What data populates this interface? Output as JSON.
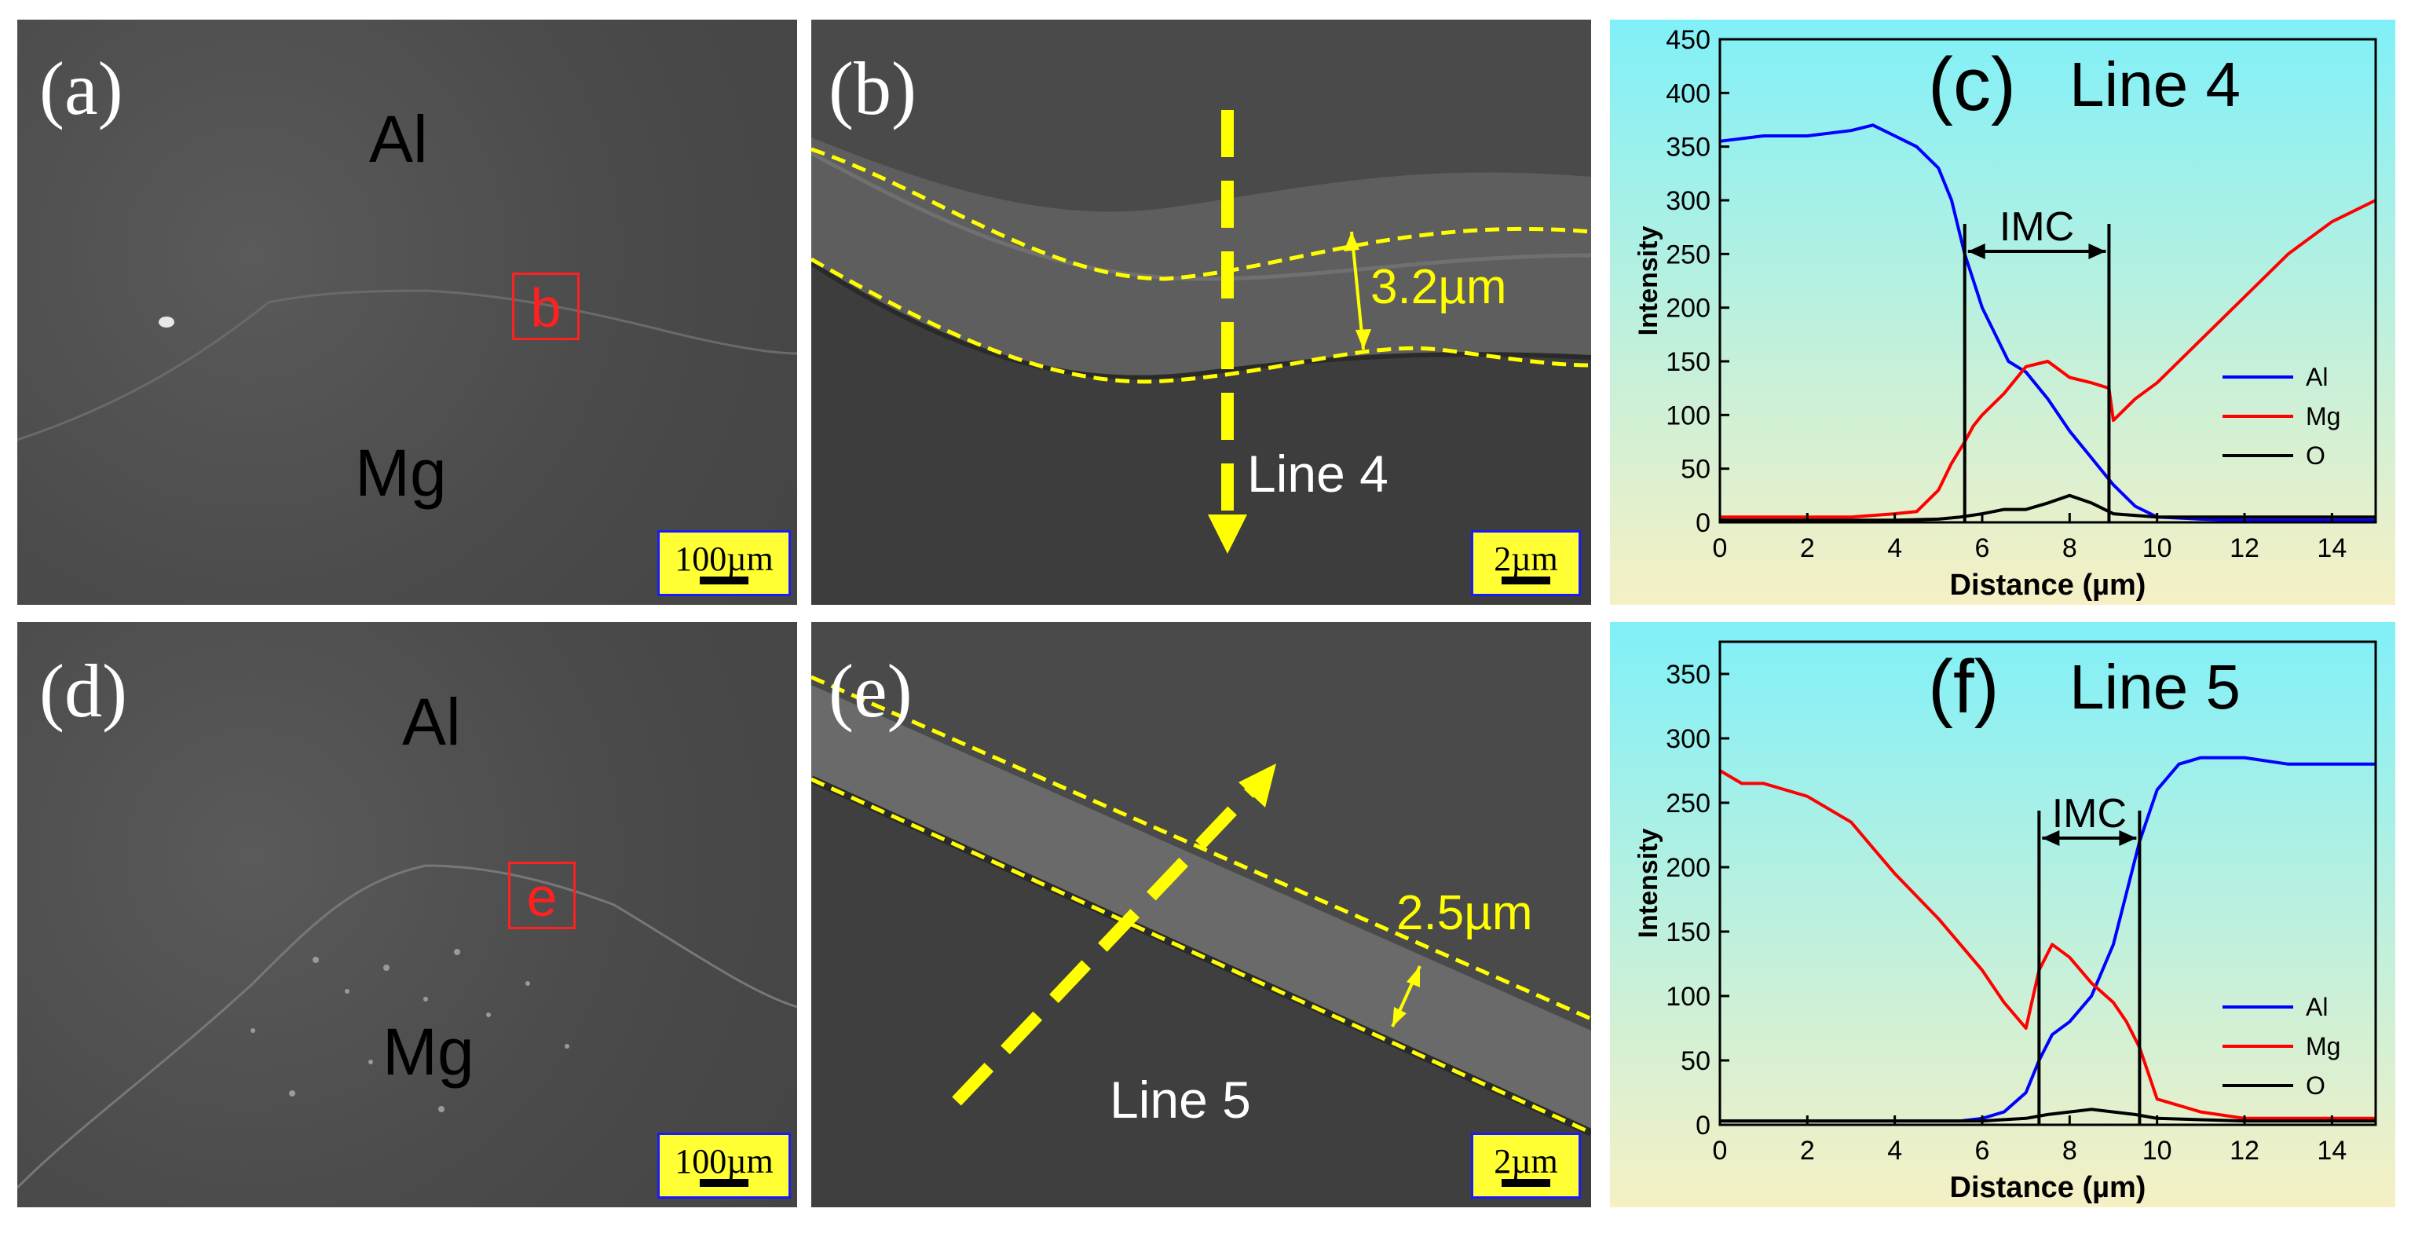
{
  "panels": {
    "a": {
      "label": "(a)",
      "top_text": "Al",
      "bottom_text": "Mg",
      "box_label": "b",
      "scale": "100µm"
    },
    "b": {
      "label": "(b)",
      "thickness": "3.2µm",
      "line": "Line 4",
      "scale": "2µm"
    },
    "d": {
      "label": "(d)",
      "top_text": "Al",
      "bottom_text": "Mg",
      "box_label": "e",
      "scale": "100µm"
    },
    "e": {
      "label": "(e)",
      "thickness": "2.5µm",
      "line": "Line 5",
      "scale": "2µm"
    }
  },
  "chart_data": [
    {
      "type": "line",
      "panel_label": "(c)",
      "title": "Line 4",
      "xlabel": "Distance (µm)",
      "ylabel": "Intensity",
      "xlim": [
        0,
        15
      ],
      "ylim": [
        0,
        450
      ],
      "xticks": [
        0,
        2,
        4,
        6,
        8,
        10,
        12,
        14
      ],
      "yticks": [
        0,
        50,
        100,
        150,
        200,
        250,
        300,
        350,
        400,
        450
      ],
      "annotation": {
        "text": "IMC",
        "x_range": [
          5.6,
          8.9
        ]
      },
      "legend": "right-middle",
      "background": [
        "#80f0f8",
        "#f6f0c4"
      ],
      "series": [
        {
          "name": "Al",
          "color": "#0000ff",
          "x": [
            0,
            1,
            2,
            3,
            3.5,
            4,
            4.5,
            5,
            5.3,
            5.6,
            5.8,
            6,
            6.3,
            6.6,
            7,
            7.5,
            8,
            8.5,
            9,
            9.5,
            10,
            11,
            12,
            13,
            14,
            15
          ],
          "y": [
            355,
            360,
            360,
            365,
            370,
            360,
            350,
            330,
            300,
            250,
            225,
            200,
            175,
            150,
            140,
            115,
            85,
            60,
            35,
            15,
            5,
            3,
            2,
            2,
            2,
            2
          ]
        },
        {
          "name": "Mg",
          "color": "#ff0000",
          "x": [
            0,
            1,
            2,
            3,
            4,
            4.5,
            5,
            5.3,
            5.6,
            5.8,
            6,
            6.5,
            7,
            7.5,
            8,
            8.5,
            8.9,
            9,
            9.5,
            10,
            11,
            12,
            13,
            14,
            15
          ],
          "y": [
            5,
            5,
            5,
            5,
            8,
            10,
            30,
            55,
            75,
            90,
            100,
            120,
            145,
            150,
            135,
            130,
            125,
            95,
            115,
            130,
            170,
            210,
            250,
            280,
            300
          ]
        },
        {
          "name": "O",
          "color": "#000000",
          "x": [
            0,
            2,
            4,
            5,
            5.5,
            6,
            6.5,
            7,
            7.5,
            8,
            8.5,
            9,
            10,
            12,
            15
          ],
          "y": [
            2,
            2,
            2,
            3,
            5,
            8,
            12,
            12,
            18,
            25,
            18,
            8,
            5,
            5,
            5
          ]
        }
      ]
    },
    {
      "type": "line",
      "panel_label": "(f)",
      "title": "Line 5",
      "xlabel": "Distance (µm)",
      "ylabel": "Intensity",
      "xlim": [
        0,
        15
      ],
      "ylim": [
        0,
        375
      ],
      "xticks": [
        0,
        2,
        4,
        6,
        8,
        10,
        12,
        14
      ],
      "yticks": [
        0,
        50,
        100,
        150,
        200,
        250,
        300,
        350
      ],
      "annotation": {
        "text": "IMC",
        "x_range": [
          7.3,
          9.6
        ]
      },
      "legend": "right-bottom",
      "background": [
        "#80f0f8",
        "#f6f0c4"
      ],
      "series": [
        {
          "name": "Al",
          "color": "#0000ff",
          "x": [
            0,
            2,
            4,
            5,
            5.5,
            6,
            6.5,
            7,
            7.3,
            7.6,
            8,
            8.5,
            9,
            9.3,
            9.6,
            10,
            10.5,
            11,
            12,
            13,
            14,
            15
          ],
          "y": [
            3,
            3,
            3,
            3,
            3,
            5,
            10,
            25,
            50,
            70,
            80,
            100,
            140,
            180,
            220,
            260,
            280,
            285,
            285,
            280,
            280,
            280
          ]
        },
        {
          "name": "Mg",
          "color": "#ff0000",
          "x": [
            0,
            0.5,
            1,
            2,
            3,
            3.5,
            4,
            5,
            6,
            6.5,
            7,
            7.3,
            7.6,
            8,
            8.5,
            9,
            9.3,
            9.6,
            10,
            11,
            12,
            13,
            14,
            15
          ],
          "y": [
            275,
            265,
            265,
            255,
            235,
            215,
            195,
            160,
            120,
            95,
            75,
            120,
            140,
            130,
            110,
            95,
            80,
            60,
            20,
            10,
            5,
            5,
            5,
            5
          ]
        },
        {
          "name": "O",
          "color": "#000000",
          "x": [
            0,
            2,
            4,
            6,
            7,
            7.5,
            8,
            8.5,
            9,
            9.5,
            10,
            12,
            15
          ],
          "y": [
            3,
            3,
            3,
            3,
            5,
            8,
            10,
            12,
            10,
            8,
            5,
            3,
            3
          ]
        }
      ]
    }
  ]
}
